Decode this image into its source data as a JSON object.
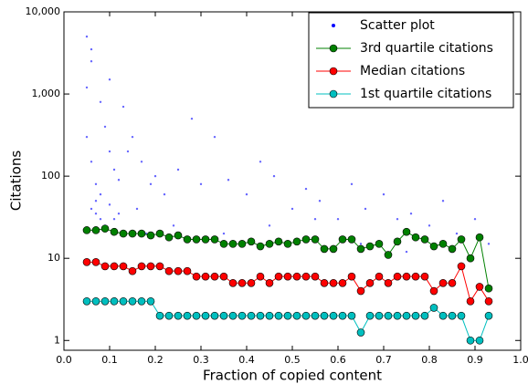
{
  "chart_data": {
    "type": "scatter_line",
    "xlabel": "Fraction of copied content",
    "ylabel": "Citations",
    "xlim": [
      0,
      1
    ],
    "ylim": [
      0.76,
      10000
    ],
    "yscale": "log",
    "grid": false,
    "legend": "upper right",
    "xticks": [
      {
        "value": 0,
        "label": "0.0"
      },
      0.1,
      0.2,
      0.3,
      0.4,
      0.5,
      0.6,
      0.7,
      0.8,
      0.9,
      {
        "value": 1,
        "label": "1.0"
      }
    ],
    "yticks": [
      1,
      10,
      100,
      {
        "value": 1000,
        "label": "1,000"
      },
      {
        "value": 10000,
        "label": "10,000"
      }
    ],
    "series": [
      {
        "name": "Scatter plot",
        "kind": "scatter",
        "color": "#0000ff",
        "x": [
          0.05,
          0.06,
          0.07,
          0.08,
          0.05,
          0.06,
          0.09,
          0.1,
          0.11,
          0.12,
          0.06,
          0.07,
          0.13,
          0.15,
          0.17,
          0.19,
          0.08,
          0.1,
          0.14,
          0.2,
          0.22,
          0.25,
          0.28,
          0.3,
          0.12,
          0.16,
          0.33,
          0.36,
          0.4,
          0.43,
          0.05,
          0.07,
          0.09,
          0.11,
          0.46,
          0.5,
          0.53,
          0.56,
          0.6,
          0.63,
          0.18,
          0.24,
          0.66,
          0.7,
          0.73,
          0.76,
          0.8,
          0.83,
          0.86,
          0.9,
          0.06,
          0.08,
          0.1,
          0.93,
          0.35,
          0.45,
          0.55,
          0.65,
          0.75,
          0.85
        ],
        "values": [
          300,
          150,
          80,
          60,
          1200,
          2500,
          400,
          200,
          120,
          90,
          40,
          50,
          700,
          300,
          150,
          80,
          30,
          45,
          200,
          100,
          60,
          120,
          500,
          80,
          35,
          40,
          300,
          90,
          60,
          150,
          5000,
          35,
          25,
          30,
          100,
          40,
          70,
          50,
          30,
          80,
          20,
          25,
          40,
          60,
          30,
          35,
          25,
          50,
          20,
          30,
          3500,
          800,
          1500,
          15,
          20,
          25,
          30,
          15,
          12,
          12
        ]
      },
      {
        "name": "3rd quartile citations",
        "kind": "line",
        "color": "#008000",
        "x": [
          0.05,
          0.07,
          0.09,
          0.11,
          0.13,
          0.15,
          0.17,
          0.19,
          0.21,
          0.23,
          0.25,
          0.27,
          0.29,
          0.31,
          0.33,
          0.35,
          0.37,
          0.39,
          0.41,
          0.43,
          0.45,
          0.47,
          0.49,
          0.51,
          0.53,
          0.55,
          0.57,
          0.59,
          0.61,
          0.63,
          0.65,
          0.67,
          0.69,
          0.71,
          0.73,
          0.75,
          0.77,
          0.79,
          0.81,
          0.83,
          0.85,
          0.87,
          0.89,
          0.91,
          0.93
        ],
        "values": [
          22,
          22,
          23,
          21,
          20,
          20,
          20,
          19,
          20,
          18,
          19,
          17,
          17,
          17,
          17,
          15,
          15,
          15,
          16,
          14,
          15,
          16,
          15,
          16,
          17,
          17,
          13,
          13,
          17,
          17,
          13,
          14,
          15,
          11,
          16,
          21,
          18,
          17,
          14,
          15,
          13,
          17,
          10,
          18,
          4.3
        ]
      },
      {
        "name": "Median citations",
        "kind": "line",
        "color": "#ff0000",
        "x": [
          0.05,
          0.07,
          0.09,
          0.11,
          0.13,
          0.15,
          0.17,
          0.19,
          0.21,
          0.23,
          0.25,
          0.27,
          0.29,
          0.31,
          0.33,
          0.35,
          0.37,
          0.39,
          0.41,
          0.43,
          0.45,
          0.47,
          0.49,
          0.51,
          0.53,
          0.55,
          0.57,
          0.59,
          0.61,
          0.63,
          0.65,
          0.67,
          0.69,
          0.71,
          0.73,
          0.75,
          0.77,
          0.79,
          0.81,
          0.83,
          0.85,
          0.87,
          0.89,
          0.91,
          0.93
        ],
        "values": [
          9,
          9,
          8,
          8,
          8,
          7,
          8,
          8,
          8,
          7,
          7,
          7,
          6,
          6,
          6,
          6,
          5,
          5,
          5,
          6,
          5,
          6,
          6,
          6,
          6,
          6,
          5,
          5,
          5,
          6,
          4,
          5,
          6,
          5,
          6,
          6,
          6,
          6,
          4,
          5,
          5,
          8,
          3,
          4.5,
          3
        ]
      },
      {
        "name": "1st quartile citations",
        "kind": "line",
        "color": "#00bfbf",
        "x": [
          0.05,
          0.07,
          0.09,
          0.11,
          0.13,
          0.15,
          0.17,
          0.19,
          0.21,
          0.23,
          0.25,
          0.27,
          0.29,
          0.31,
          0.33,
          0.35,
          0.37,
          0.39,
          0.41,
          0.43,
          0.45,
          0.47,
          0.49,
          0.51,
          0.53,
          0.55,
          0.57,
          0.59,
          0.61,
          0.63,
          0.65,
          0.67,
          0.69,
          0.71,
          0.73,
          0.75,
          0.77,
          0.79,
          0.81,
          0.83,
          0.85,
          0.87,
          0.89,
          0.91,
          0.93
        ],
        "values": [
          3,
          3,
          3,
          3,
          3,
          3,
          3,
          3,
          2,
          2,
          2,
          2,
          2,
          2,
          2,
          2,
          2,
          2,
          2,
          2,
          2,
          2,
          2,
          2,
          2,
          2,
          2,
          2,
          2,
          2,
          1.25,
          2,
          2,
          2,
          2,
          2,
          2,
          2,
          2.5,
          2,
          2,
          2,
          1,
          1,
          2
        ]
      }
    ]
  }
}
